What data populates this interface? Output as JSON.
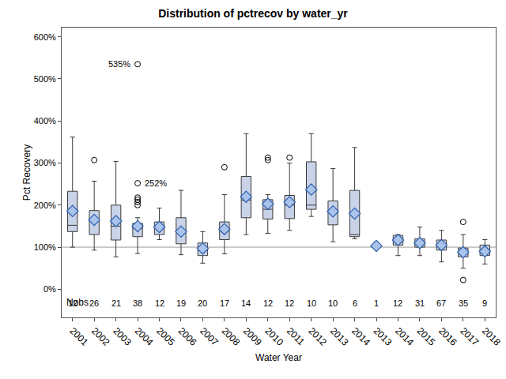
{
  "chart_data": {
    "type": "box",
    "title": "Distribution of pctrecov by water_yr",
    "x_label": "Water Year",
    "y_label": "Pct Recovery",
    "categories": [
      "2001",
      "2002",
      "2003",
      "2004",
      "2005",
      "2006",
      "2007",
      "2008",
      "2009",
      "2010",
      "2011",
      "2012",
      "2013",
      "2014",
      "2013",
      "2014",
      "2015",
      "2016",
      "2017",
      "2018"
    ],
    "lowerfence": [
      100,
      93,
      77,
      85,
      118,
      82,
      62,
      84,
      130,
      133,
      140,
      173,
      113,
      120,
      103,
      80,
      80,
      65,
      50,
      60
    ],
    "q1": [
      137,
      130,
      117,
      125,
      130,
      108,
      80,
      118,
      170,
      167,
      168,
      190,
      153,
      125,
      103,
      105,
      100,
      93,
      77,
      80
    ],
    "median": [
      152,
      165,
      150,
      145,
      145,
      135,
      93,
      140,
      212,
      190,
      200,
      200,
      185,
      130,
      103,
      115,
      110,
      105,
      88,
      90
    ],
    "q3": [
      233,
      187,
      200,
      157,
      160,
      170,
      110,
      160,
      268,
      213,
      223,
      303,
      210,
      235,
      103,
      128,
      120,
      117,
      98,
      105
    ],
    "upperfence": [
      362,
      257,
      304,
      170,
      193,
      235,
      137,
      225,
      370,
      225,
      300,
      370,
      287,
      337,
      103,
      130,
      148,
      140,
      130,
      118
    ],
    "mean": [
      186,
      165,
      162,
      150,
      148,
      137,
      97,
      143,
      220,
      203,
      207,
      237,
      185,
      180,
      103,
      117,
      110,
      105,
      88,
      90
    ],
    "outliers": [
      [],
      [
        307
      ],
      [],
      [
        200,
        207,
        213,
        218,
        252,
        535
      ],
      [],
      [],
      [],
      [
        290
      ],
      [],
      [
        307,
        313
      ],
      [
        313
      ],
      [],
      [],
      [],
      [],
      [],
      [],
      [],
      [
        160,
        22
      ],
      []
    ],
    "nobs_label": "Nobs",
    "nobs": [
      12,
      26,
      21,
      38,
      12,
      19,
      20,
      17,
      14,
      12,
      12,
      10,
      10,
      6,
      1,
      12,
      31,
      67,
      35,
      9
    ],
    "annotations": [
      {
        "x": 3,
        "y": 535,
        "text": "535%"
      },
      {
        "x": 3,
        "y": 252,
        "text": "252%"
      }
    ],
    "refline": 100,
    "color": "#c8d3e8",
    "marker": "diamond",
    "ylim": [
      -67,
      622
    ],
    "yticks": [
      {
        "value": 0,
        "label": "0%"
      },
      {
        "value": 100,
        "label": "100%"
      },
      {
        "value": 200,
        "label": "200%"
      },
      {
        "value": 300,
        "label": "300%"
      },
      {
        "value": 400,
        "label": "400%"
      },
      {
        "value": 500,
        "label": "500%"
      },
      {
        "value": 600,
        "label": "600%"
      }
    ],
    "grid": false
  }
}
